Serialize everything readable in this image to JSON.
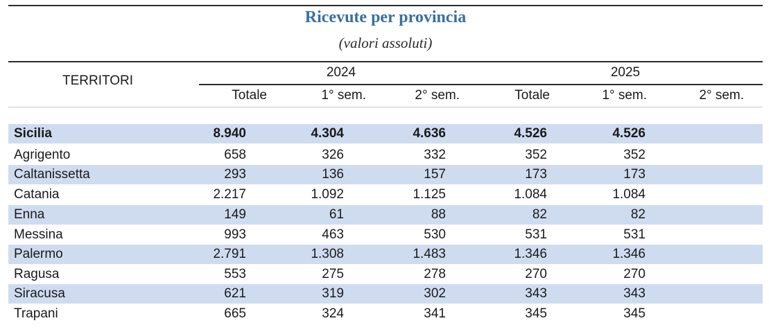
{
  "title": "Ricevute per provincia",
  "subtitle": "(valori assoluti)",
  "header": {
    "territori": "TERRITORI",
    "years": [
      "2024",
      "2025"
    ],
    "columns": [
      "Totale",
      "1° sem.",
      "2° sem.",
      "Totale",
      "1° sem.",
      "2° sem."
    ]
  },
  "rows": [
    {
      "name": "Sicilia",
      "values": [
        "8.940",
        "4.304",
        "4.636",
        "4.526",
        "4.526",
        ""
      ]
    },
    {
      "name": "Agrigento",
      "values": [
        "658",
        "326",
        "332",
        "352",
        "352",
        ""
      ]
    },
    {
      "name": "Caltanissetta",
      "values": [
        "293",
        "136",
        "157",
        "173",
        "173",
        ""
      ]
    },
    {
      "name": "Catania",
      "values": [
        "2.217",
        "1.092",
        "1.125",
        "1.084",
        "1.084",
        ""
      ]
    },
    {
      "name": "Enna",
      "values": [
        "149",
        "61",
        "88",
        "82",
        "82",
        ""
      ]
    },
    {
      "name": "Messina",
      "values": [
        "993",
        "463",
        "530",
        "531",
        "531",
        ""
      ]
    },
    {
      "name": "Palermo",
      "values": [
        "2.791",
        "1.308",
        "1.483",
        "1.346",
        "1.346",
        ""
      ]
    },
    {
      "name": "Ragusa",
      "values": [
        "553",
        "275",
        "278",
        "270",
        "270",
        ""
      ]
    },
    {
      "name": "Siracusa",
      "values": [
        "621",
        "319",
        "302",
        "343",
        "343",
        ""
      ]
    },
    {
      "name": "Trapani",
      "values": [
        "665",
        "324",
        "341",
        "345",
        "345",
        ""
      ]
    }
  ]
}
